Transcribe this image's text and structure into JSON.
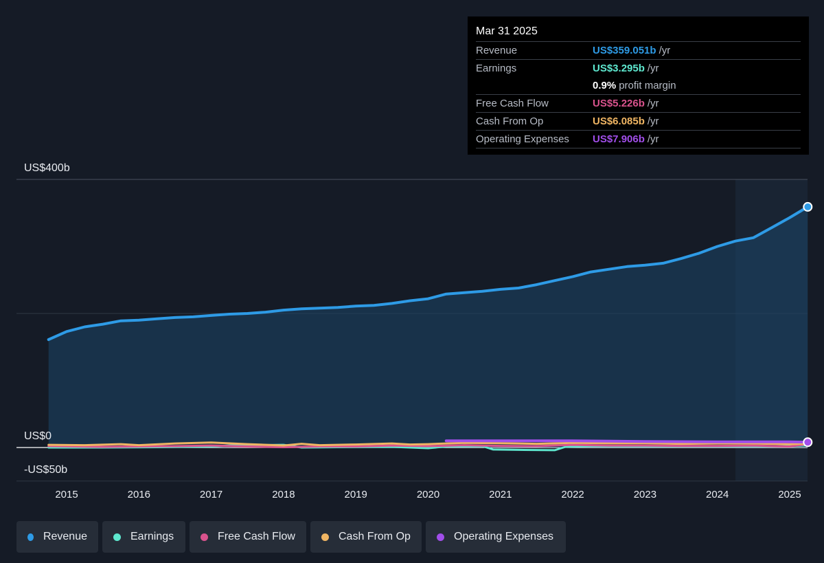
{
  "tooltip": {
    "date": "Mar 31 2025",
    "rows": [
      {
        "label": "Revenue",
        "value": "US$359.051b",
        "unit": "/yr",
        "color": "#2e9be6"
      },
      {
        "label": "Earnings",
        "value": "US$3.295b",
        "unit": "/yr",
        "color": "#5ee8cf"
      },
      {
        "margin_value": "0.9%",
        "margin_label": "profit margin"
      },
      {
        "label": "Free Cash Flow",
        "value": "US$5.226b",
        "unit": "/yr",
        "color": "#d9538d"
      },
      {
        "label": "Cash From Op",
        "value": "US$6.085b",
        "unit": "/yr",
        "color": "#f0b563"
      },
      {
        "label": "Operating Expenses",
        "value": "US$7.906b",
        "unit": "/yr",
        "color": "#a14eea"
      }
    ]
  },
  "legend": [
    {
      "label": "Revenue",
      "color": "#2e9be6"
    },
    {
      "label": "Earnings",
      "color": "#5ee8cf"
    },
    {
      "label": "Free Cash Flow",
      "color": "#d9538d"
    },
    {
      "label": "Cash From Op",
      "color": "#f0b563"
    },
    {
      "label": "Operating Expenses",
      "color": "#a14eea"
    }
  ],
  "chart_data": {
    "type": "area",
    "y_axis_labels": [
      "US$400b",
      "US$0",
      "-US$50b"
    ],
    "ylim": [
      -50,
      400
    ],
    "xlim": [
      2014.55,
      2025.25
    ],
    "x_ticks": [
      "2015",
      "2016",
      "2017",
      "2018",
      "2019",
      "2020",
      "2021",
      "2022",
      "2023",
      "2024",
      "2025"
    ],
    "forecast_region_start": 2024.25,
    "grid": true,
    "series": [
      {
        "name": "Revenue",
        "color": "#2e9be6",
        "x": [
          2014.75,
          2015.0,
          2015.25,
          2015.5,
          2015.75,
          2016.0,
          2016.25,
          2016.5,
          2016.75,
          2017.0,
          2017.25,
          2017.5,
          2017.75,
          2018.0,
          2018.25,
          2018.5,
          2018.75,
          2019.0,
          2019.25,
          2019.5,
          2019.75,
          2020.0,
          2020.25,
          2020.5,
          2020.75,
          2021.0,
          2021.25,
          2021.5,
          2021.75,
          2022.0,
          2022.25,
          2022.5,
          2022.75,
          2023.0,
          2023.25,
          2023.5,
          2023.75,
          2024.0,
          2024.25,
          2024.5,
          2024.75,
          2025.0,
          2025.25
        ],
        "values": [
          161,
          173,
          180,
          184,
          189,
          190,
          192,
          194,
          195,
          197,
          199,
          200,
          202,
          205,
          207,
          208,
          209,
          211,
          212,
          215,
          219,
          222,
          229,
          231,
          233,
          236,
          238,
          243,
          249,
          255,
          262,
          266,
          270,
          272,
          275,
          282,
          290,
          300,
          308,
          313,
          328,
          343,
          359.051
        ]
      },
      {
        "name": "Earnings",
        "color": "#5ee8cf",
        "x": [
          2014.75,
          2015.5,
          2016.25,
          2017.0,
          2017.25,
          2018.0,
          2018.25,
          2018.75,
          2019.5,
          2020.0,
          2020.25,
          2020.75,
          2020.9,
          2021.25,
          2021.75,
          2021.9,
          2022.25,
          2023.0,
          2024.0,
          2025.0,
          2025.25
        ],
        "values": [
          0,
          0,
          0.5,
          1.5,
          3,
          4,
          0,
          0.5,
          1,
          -1,
          1.5,
          2,
          -3,
          -3.5,
          -4,
          1,
          2,
          2,
          2,
          2,
          3.295
        ]
      },
      {
        "name": "Free Cash Flow",
        "color": "#d9538d",
        "x": [
          2014.75,
          2015.5,
          2016.5,
          2017.0,
          2017.5,
          2018.0,
          2018.5,
          2019.0,
          2019.5,
          2020.0,
          2020.5,
          2021.0,
          2021.5,
          2022.0,
          2022.5,
          2023.0,
          2023.5,
          2024.0,
          2024.5,
          2025.0,
          2025.25
        ],
        "values": [
          2,
          1,
          2,
          3,
          1.5,
          0.5,
          1.5,
          1.5,
          3,
          2,
          3.5,
          2.5,
          2,
          4,
          3,
          3,
          2.5,
          2.5,
          3,
          1.5,
          5.226
        ]
      },
      {
        "name": "Cash From Op",
        "color": "#f0b563",
        "x": [
          2014.75,
          2015.25,
          2015.75,
          2016.0,
          2016.5,
          2017.0,
          2017.5,
          2018.0,
          2018.25,
          2018.5,
          2019.0,
          2019.5,
          2019.75,
          2020.0,
          2020.5,
          2021.0,
          2021.5,
          2022.0,
          2022.5,
          2023.0,
          2023.5,
          2024.0,
          2024.5,
          2025.0,
          2025.25
        ],
        "values": [
          4,
          3.5,
          5,
          3.5,
          6,
          7.5,
          5,
          3,
          5.5,
          3.5,
          4.5,
          6,
          4.5,
          5,
          7,
          6.5,
          5.5,
          7,
          6.5,
          6.5,
          5.5,
          6,
          6,
          5,
          6.085
        ]
      },
      {
        "name": "Operating Expenses",
        "color": "#a14eea",
        "x": [
          2020.25,
          2021.0,
          2022.0,
          2023.0,
          2024.0,
          2025.0,
          2025.25
        ],
        "values": [
          10,
          10,
          10,
          9,
          8.5,
          8.5,
          7.906
        ]
      }
    ]
  }
}
